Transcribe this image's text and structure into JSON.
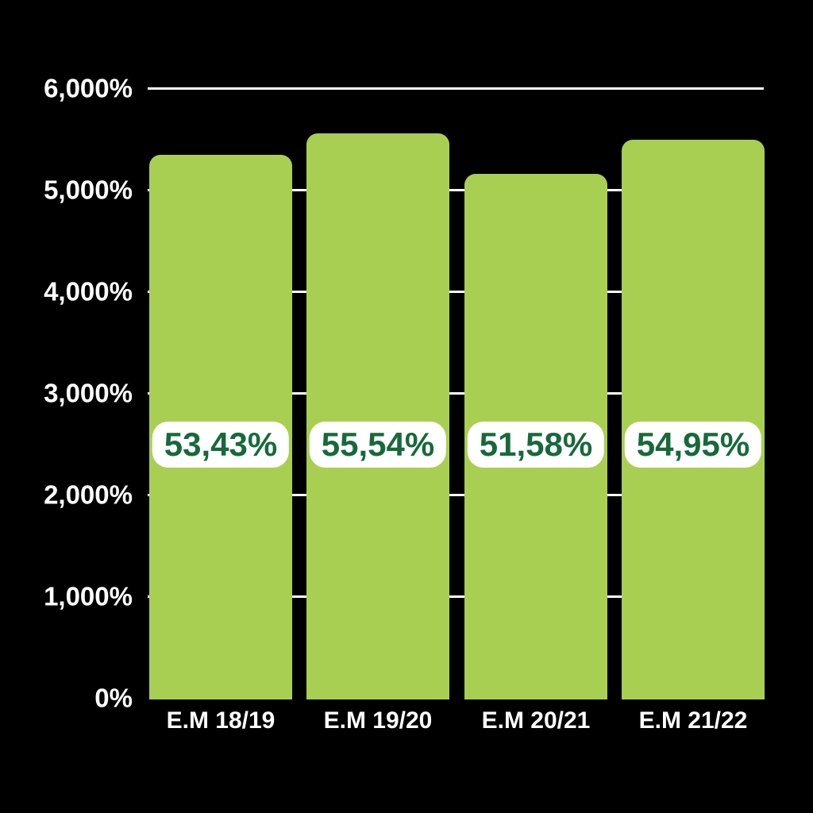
{
  "background_color": "#000000",
  "chart_data": {
    "type": "bar",
    "title": "",
    "xlabel": "",
    "ylabel": "",
    "categories": [
      "E.M 18/19",
      "E.M 19/20",
      "E.M 20/21",
      "E.M 21/22"
    ],
    "values": [
      53.43,
      55.54,
      51.58,
      54.95
    ],
    "data_labels": [
      "53,43%",
      "55,54%",
      "51,58%",
      "54,95%"
    ],
    "y_axis": {
      "tick_labels": [
        "6,000%",
        "5,000%",
        "4,000%",
        "3,000%",
        "2,000%",
        "1,000%",
        "0%"
      ],
      "tick_values": [
        6000,
        5000,
        4000,
        3000,
        2000,
        1000,
        0
      ],
      "min": 0,
      "max": 6000
    },
    "grid": true,
    "legend": false,
    "colors": {
      "bar": "#A9CF52",
      "gridline": "#FFFFFF",
      "axis_text": "#FFFFFF",
      "data_label_text": "#17693B",
      "data_label_pill": "#FFFFFF"
    }
  }
}
